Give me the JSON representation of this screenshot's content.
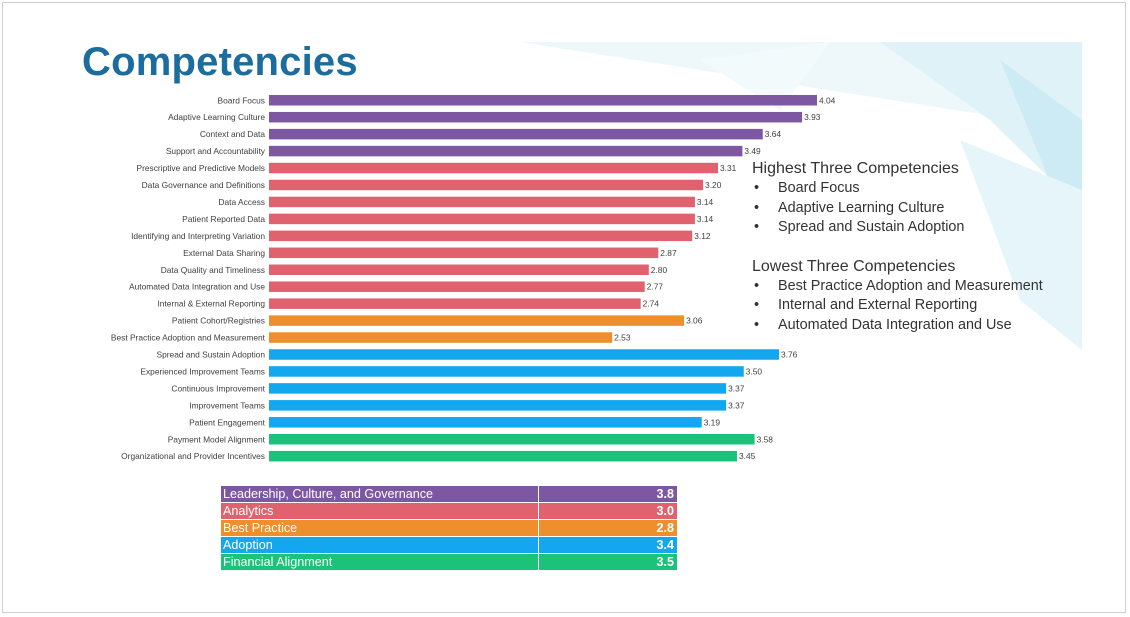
{
  "title": "Competencies",
  "colors": {
    "leadership": "#7e57a3",
    "analytics": "#e0626e",
    "best_practice": "#ec8f2c",
    "adoption": "#12a7ee",
    "financial": "#1bc37a",
    "title": "#1a6d9c"
  },
  "chart_data": {
    "type": "bar",
    "orientation": "horizontal",
    "title": "",
    "xlabel": "",
    "ylabel": "",
    "xlim": [
      0,
      4.04
    ],
    "grid": false,
    "bars": [
      {
        "label": "Board Focus",
        "value": 4.04,
        "display": "4.04",
        "group": "leadership"
      },
      {
        "label": "Adaptive Learning Culture",
        "value": 3.93,
        "display": "3.93",
        "group": "leadership"
      },
      {
        "label": "Context and Data",
        "value": 3.64,
        "display": "3.64",
        "group": "leadership"
      },
      {
        "label": "Support and Accountability",
        "value": 3.49,
        "display": "3.49",
        "group": "leadership"
      },
      {
        "label": "Prescriptive and Predictive Models",
        "value": 3.31,
        "display": "3.31",
        "group": "analytics"
      },
      {
        "label": "Data Governance and Definitions",
        "value": 3.2,
        "display": "3.20",
        "group": "analytics"
      },
      {
        "label": "Data Access",
        "value": 3.14,
        "display": "3.14",
        "group": "analytics"
      },
      {
        "label": "Patient Reported Data",
        "value": 3.14,
        "display": "3.14",
        "group": "analytics"
      },
      {
        "label": "Identifying and Interpreting Variation",
        "value": 3.12,
        "display": "3.12",
        "group": "analytics"
      },
      {
        "label": "External Data Sharing",
        "value": 2.87,
        "display": "2.87",
        "group": "analytics"
      },
      {
        "label": "Data Quality and Timeliness",
        "value": 2.8,
        "display": "2.80",
        "group": "analytics"
      },
      {
        "label": "Automated Data Integration and Use",
        "value": 2.77,
        "display": "2.77",
        "group": "analytics"
      },
      {
        "label": "Internal & External Reporting",
        "value": 2.74,
        "display": "2.74",
        "group": "analytics"
      },
      {
        "label": "Patient Cohort/Registries",
        "value": 3.06,
        "display": "3.06",
        "group": "best_practice"
      },
      {
        "label": "Best Practice Adoption and Measurement",
        "value": 2.53,
        "display": "2.53",
        "group": "best_practice"
      },
      {
        "label": "Spread and Sustain Adoption",
        "value": 3.76,
        "display": "3.76",
        "group": "adoption"
      },
      {
        "label": "Experienced Improvement Teams",
        "value": 3.5,
        "display": "3.50",
        "group": "adoption"
      },
      {
        "label": "Continuous Improvement",
        "value": 3.37,
        "display": "3.37",
        "group": "adoption"
      },
      {
        "label": "Improvement Teams",
        "value": 3.37,
        "display": "3.37",
        "group": "adoption"
      },
      {
        "label": "Patient Engagement",
        "value": 3.19,
        "display": "3.19",
        "group": "adoption"
      },
      {
        "label": "Payment Model Alignment",
        "value": 3.58,
        "display": "3.58",
        "group": "financial"
      },
      {
        "label": "Organizational and Provider Incentives",
        "value": 3.45,
        "display": "3.45",
        "group": "financial"
      }
    ]
  },
  "callout": {
    "highest_heading": "Highest Three Competencies",
    "highest": [
      "Board Focus",
      "Adaptive Learning Culture",
      "Spread and Sustain Adoption"
    ],
    "lowest_heading": "Lowest Three Competencies",
    "lowest": [
      "Best Practice Adoption and Measurement",
      "Internal and External Reporting",
      "Automated Data Integration and Use"
    ],
    "bullet": "•"
  },
  "summary": [
    {
      "label": "Leadership, Culture, and Governance",
      "value": "3.8",
      "group": "leadership"
    },
    {
      "label": "Analytics",
      "value": "3.0",
      "group": "analytics"
    },
    {
      "label": "Best Practice",
      "value": "2.8",
      "group": "best_practice"
    },
    {
      "label": "Adoption",
      "value": "3.4",
      "group": "adoption"
    },
    {
      "label": "Financial Alignment",
      "value": "3.5",
      "group": "financial"
    }
  ]
}
